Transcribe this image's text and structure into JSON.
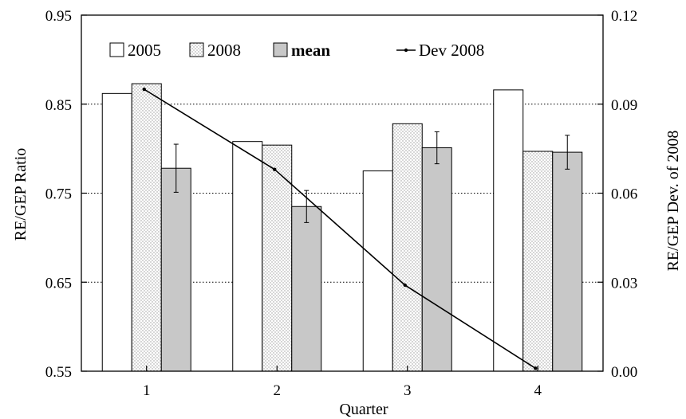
{
  "chart_data": {
    "type": "bar",
    "xlabel": "Quarter",
    "ylabel": "RE/GEP Ratio",
    "y2label": "RE/GEP Dev. of 2008",
    "categories": [
      "1",
      "2",
      "3",
      "4"
    ],
    "ylim": [
      0.55,
      0.95
    ],
    "yticks": [
      "0.55",
      "0.65",
      "0.75",
      "0.85",
      "0.95"
    ],
    "y2lim": [
      0.0,
      0.12
    ],
    "y2ticks": [
      "0.00",
      "0.03",
      "0.06",
      "0.09",
      "0.12"
    ],
    "grid": "horizontal dotted",
    "legend_position": "top",
    "series": [
      {
        "name": "2005",
        "values": [
          0.862,
          0.808,
          0.775,
          0.866
        ],
        "style": "white"
      },
      {
        "name": "2008",
        "values": [
          0.873,
          0.804,
          0.828,
          0.797
        ],
        "style": "dotted"
      },
      {
        "name": "mean",
        "values": [
          0.778,
          0.735,
          0.801,
          0.796
        ],
        "errors": [
          0.027,
          0.018,
          0.018,
          0.019
        ],
        "style": "gray",
        "axis": "left"
      }
    ],
    "line": {
      "name": "Dev 2008",
      "values": [
        0.095,
        0.068,
        0.029,
        0.001
      ],
      "axis": "right"
    },
    "colors": {
      "bar_outline": "#000000",
      "gray_fill": "#c8c8c8",
      "dot_fill": "#9a9a9a"
    }
  }
}
